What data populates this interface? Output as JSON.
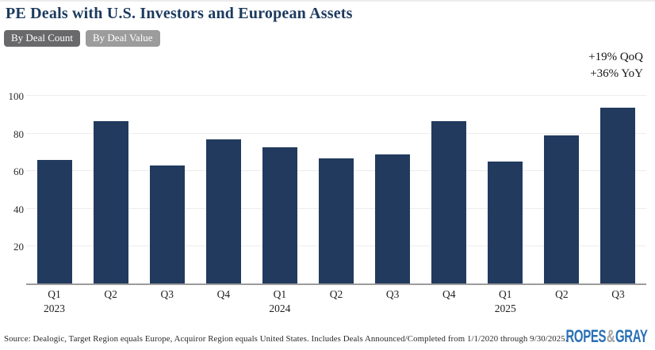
{
  "header": {
    "title": "PE Deals with U.S. Investors and European Assets",
    "tabs": [
      {
        "label": "By Deal Count",
        "selected": true
      },
      {
        "label": "By Deal Value",
        "selected": false
      }
    ]
  },
  "annotation": {
    "line1": "+19% QoQ",
    "line2": "+36% YoY"
  },
  "chart_data": {
    "type": "bar",
    "title": "PE Deals with U.S. Investors and European Assets",
    "categories": [
      "Q1 2023",
      "Q2 2023",
      "Q3 2023",
      "Q4 2023",
      "Q1 2024",
      "Q2 2024",
      "Q3 2024",
      "Q4 2024",
      "Q1 2025",
      "Q2 2025",
      "Q3 2025"
    ],
    "tick_labels": [
      {
        "q": "Q1",
        "year": "2023"
      },
      {
        "q": "Q2"
      },
      {
        "q": "Q3"
      },
      {
        "q": "Q4"
      },
      {
        "q": "Q1",
        "year": "2024"
      },
      {
        "q": "Q2"
      },
      {
        "q": "Q3"
      },
      {
        "q": "Q4"
      },
      {
        "q": "Q1",
        "year": "2025"
      },
      {
        "q": "Q2"
      },
      {
        "q": "Q3"
      }
    ],
    "values": [
      66,
      87,
      63,
      77,
      73,
      67,
      69,
      87,
      65,
      79,
      94
    ],
    "xlabel": "",
    "ylabel": "",
    "ylim": [
      0,
      100
    ],
    "yticks": [
      20,
      40,
      60,
      80,
      100
    ],
    "grid": true,
    "legend": "none",
    "bar_color": "#213a5e"
  },
  "footer": {
    "source": "Source: Dealogic, Target Region equals Europe, Acquiror Region equals United States. Includes Deals Announced/Completed from 1/1/2020 through 9/30/2025.",
    "logo": {
      "part1": "ROPES",
      "amp": "&",
      "part2": "GRAY"
    }
  },
  "colors": {
    "bar": "#213a5e",
    "title": "#1c3a5e",
    "tab_selected_bg": "#69696b",
    "tab_unselected_bg": "#9c9c9c",
    "gridline": "#ededed",
    "axis_line": "#9c9c9c",
    "logo_blue": "#2a70b5",
    "logo_amp_gray": "#a3a3a3"
  }
}
